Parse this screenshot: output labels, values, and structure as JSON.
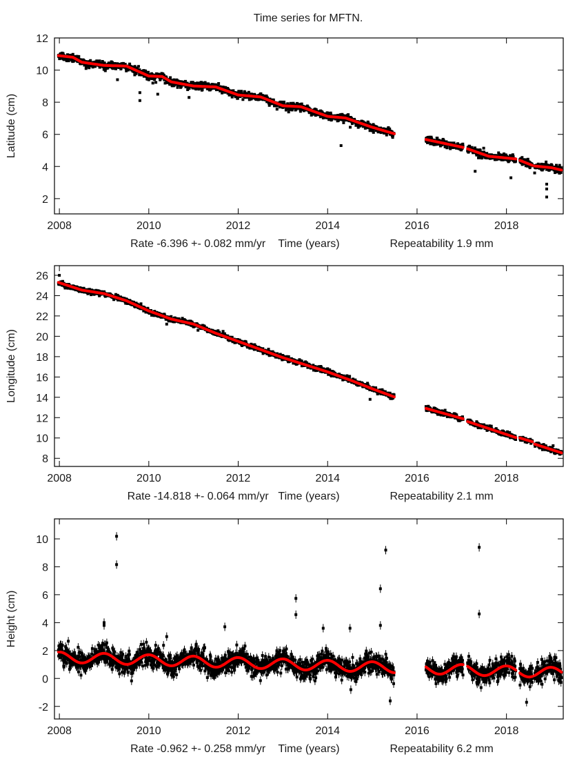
{
  "title": "Time series for MFTN.",
  "chart_data": [
    {
      "type": "scatter",
      "ylabel": "Latitude (cm)",
      "xlabel_parts": [
        "Rate -6.396 +- 0.082 mm/yr",
        "Time (years)",
        "Repeatability 1.9 mm"
      ],
      "rate_mm_per_yr": -6.396,
      "rate_sigma": 0.082,
      "repeatability_mm": 1.9,
      "xlim": [
        2007.89,
        2019.27
      ],
      "ylim": [
        1.05,
        12
      ],
      "xtick_labels": [
        "2008",
        "2010",
        "2012",
        "2014",
        "2016",
        "2018"
      ],
      "ytick_labels": [
        "2",
        "4",
        "6",
        "8",
        "10",
        "12"
      ],
      "segments": [
        [
          2007.98,
          2015.49
        ],
        [
          2016.2,
          2017.03
        ],
        [
          2017.13,
          2018.21
        ],
        [
          2018.3,
          2018.58
        ],
        [
          2018.63,
          2019.23
        ]
      ],
      "fit": {
        "model": "knots",
        "points": [
          [
            2007.98,
            10.9
          ],
          [
            2008.3,
            10.8
          ],
          [
            2008.5,
            10.49
          ],
          [
            2009.0,
            10.29
          ],
          [
            2009.5,
            10.25
          ],
          [
            2010.0,
            9.63
          ],
          [
            2010.3,
            9.6
          ],
          [
            2010.5,
            9.27
          ],
          [
            2011.0,
            9.01
          ],
          [
            2011.5,
            8.95
          ],
          [
            2012.0,
            8.45
          ],
          [
            2012.5,
            8.33
          ],
          [
            2013.0,
            7.78
          ],
          [
            2013.4,
            7.72
          ],
          [
            2014.0,
            7.12
          ],
          [
            2014.4,
            7.02
          ],
          [
            2015.0,
            6.44
          ],
          [
            2015.49,
            6.04
          ],
          [
            2016.2,
            5.68
          ],
          [
            2017.03,
            5.19
          ],
          [
            2017.13,
            5.1
          ],
          [
            2017.6,
            4.64
          ],
          [
            2018.21,
            4.47
          ],
          [
            2018.3,
            4.38
          ],
          [
            2018.58,
            4.07
          ],
          [
            2018.63,
            4.03
          ],
          [
            2019.0,
            3.93
          ],
          [
            2019.23,
            3.78
          ]
        ]
      },
      "noise_sigma": 0.13,
      "error_bar": 0.07,
      "outliers": [
        [
          2009.3,
          9.4
        ],
        [
          2009.8,
          8.1
        ],
        [
          2009.8,
          8.6
        ],
        [
          2010.2,
          8.5
        ],
        [
          2010.9,
          8.3
        ],
        [
          2014.3,
          5.3
        ],
        [
          2017.3,
          3.7
        ],
        [
          2018.1,
          3.3
        ],
        [
          2018.9,
          2.1
        ],
        [
          2018.9,
          2.6
        ],
        [
          2018.9,
          2.9
        ]
      ]
    },
    {
      "type": "scatter",
      "ylabel": "Longitude (cm)",
      "xlabel_parts": [
        "Rate -14.818 +- 0.064 mm/yr",
        "Time (years)",
        "Repeatability 2.1 mm"
      ],
      "rate_mm_per_yr": -14.818,
      "rate_sigma": 0.064,
      "repeatability_mm": 2.1,
      "xlim": [
        2007.89,
        2019.27
      ],
      "ylim": [
        7.2,
        26.95
      ],
      "xtick_labels": [
        "2008",
        "2010",
        "2012",
        "2014",
        "2016",
        "2018"
      ],
      "ytick_labels": [
        "8",
        "10",
        "12",
        "14",
        "16",
        "18",
        "20",
        "22",
        "24",
        "26"
      ],
      "segments": [
        [
          2007.98,
          2015.49
        ],
        [
          2016.2,
          2017.03
        ],
        [
          2017.13,
          2018.21
        ],
        [
          2018.3,
          2018.58
        ],
        [
          2018.63,
          2019.23
        ]
      ],
      "fit": {
        "model": "knots",
        "points": [
          [
            2007.98,
            25.3
          ],
          [
            2008.5,
            24.55
          ],
          [
            2009.0,
            24.2
          ],
          [
            2009.5,
            23.5
          ],
          [
            2010.0,
            22.5
          ],
          [
            2010.5,
            21.7
          ],
          [
            2011.0,
            21.2
          ],
          [
            2011.5,
            20.3
          ],
          [
            2012.0,
            19.5
          ],
          [
            2012.5,
            18.7
          ],
          [
            2013.0,
            17.9
          ],
          [
            2013.5,
            17.2
          ],
          [
            2014.0,
            16.5
          ],
          [
            2014.5,
            15.7
          ],
          [
            2015.0,
            14.84
          ],
          [
            2015.49,
            14.04
          ],
          [
            2016.2,
            12.91
          ],
          [
            2017.03,
            11.89
          ],
          [
            2017.13,
            11.62
          ],
          [
            2018.21,
            10.04
          ],
          [
            2018.3,
            10.0
          ],
          [
            2018.58,
            9.63
          ],
          [
            2018.63,
            9.4
          ],
          [
            2019.23,
            8.54
          ]
        ]
      },
      "noise_sigma": 0.14,
      "error_bar": 0.08,
      "outliers": [
        [
          2008.0,
          26.0
        ],
        [
          2010.4,
          21.2
        ],
        [
          2011.1,
          20.6
        ],
        [
          2014.95,
          13.8
        ]
      ]
    },
    {
      "type": "scatter",
      "ylabel": "Height (cm)",
      "xlabel_parts": [
        "Rate -0.962 +- 0.258 mm/yr",
        "Time (years)",
        "Repeatability 6.2 mm"
      ],
      "rate_mm_per_yr": -0.962,
      "rate_sigma": 0.258,
      "repeatability_mm": 6.2,
      "xlim": [
        2007.89,
        2019.27
      ],
      "ylim": [
        -2.9,
        11.43
      ],
      "xtick_labels": [
        "2008",
        "2010",
        "2012",
        "2014",
        "2016",
        "2018"
      ],
      "ytick_labels": [
        "-2",
        "0",
        "2",
        "4",
        "6",
        "8",
        "10"
      ],
      "segments": [
        [
          2007.98,
          2015.49
        ],
        [
          2016.2,
          2017.03
        ],
        [
          2017.13,
          2018.21
        ],
        [
          2018.3,
          2018.58
        ],
        [
          2018.63,
          2019.23
        ]
      ],
      "fit": {
        "model": "seasonal",
        "t0": 2008.0,
        "offset": 1.53,
        "rate": -0.1,
        "annual_amplitude": 0.37
      },
      "noise_sigma": 0.45,
      "error_bar": 0.3,
      "outliers": [
        [
          2009.28,
          10.18
        ],
        [
          2009.28,
          8.16
        ],
        [
          2009.0,
          4.0
        ],
        [
          2009.0,
          3.8
        ],
        [
          2010.4,
          3.0
        ],
        [
          2011.7,
          3.7
        ],
        [
          2013.29,
          5.74
        ],
        [
          2013.29,
          4.57
        ],
        [
          2013.9,
          3.6
        ],
        [
          2014.5,
          3.6
        ],
        [
          2015.18,
          6.43
        ],
        [
          2015.18,
          3.8
        ],
        [
          2015.3,
          9.19
        ],
        [
          2015.4,
          -1.6
        ],
        [
          2017.39,
          9.39
        ],
        [
          2017.39,
          4.62
        ],
        [
          2018.45,
          -1.7
        ]
      ]
    }
  ]
}
